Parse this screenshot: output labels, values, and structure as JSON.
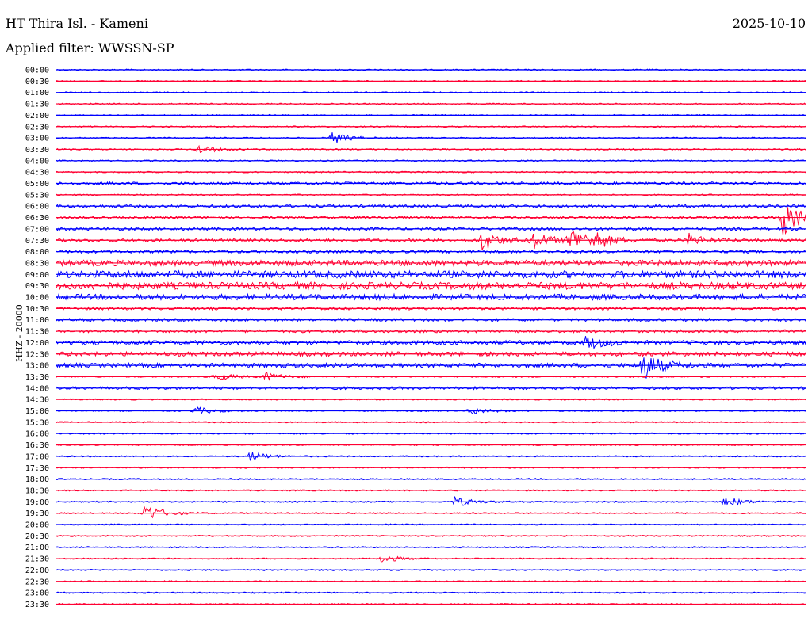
{
  "header": {
    "station": "HT Thira Isl. - Kameni",
    "date": "2025-10-10",
    "filter": "Applied filter: WWSSN-SP",
    "channel_label": "HHZ - 20000"
  },
  "colors": {
    "even_row": "#0000ff",
    "odd_row": "#ff0033",
    "text": "#000000"
  },
  "chart_data": {
    "type": "line",
    "title": "HT Thira Isl. - Kameni",
    "ylabel": "HHZ - 20000",
    "row_labels": [
      "00:00",
      "00:30",
      "01:00",
      "01:30",
      "02:00",
      "02:30",
      "03:00",
      "03:30",
      "04:00",
      "04:30",
      "05:00",
      "05:30",
      "06:00",
      "06:30",
      "07:00",
      "07:30",
      "08:00",
      "08:30",
      "09:00",
      "09:30",
      "10:00",
      "10:30",
      "11:00",
      "11:30",
      "12:00",
      "12:30",
      "13:00",
      "13:30",
      "14:00",
      "14:30",
      "15:00",
      "15:30",
      "16:00",
      "16:30",
      "17:00",
      "17:30",
      "18:00",
      "18:30",
      "19:00",
      "19:30",
      "20:00",
      "20:30",
      "21:00",
      "21:30",
      "22:00",
      "22:30",
      "23:00",
      "23:30"
    ],
    "row_noise_level": [
      1,
      1,
      1,
      1,
      1,
      1,
      1,
      1,
      1,
      1,
      2,
      1,
      2,
      2,
      2,
      2,
      2,
      4,
      5,
      5,
      4,
      2,
      2,
      2,
      3,
      3,
      3,
      1,
      2,
      1,
      1,
      1,
      1,
      1,
      1,
      1,
      1,
      1,
      1,
      1,
      1,
      1,
      1,
      1,
      1,
      1,
      1,
      1
    ],
    "events": [
      {
        "row": "03:00",
        "minute": 11.0,
        "amplitude": 8
      },
      {
        "row": "03:30",
        "minute": 5.6,
        "amplitude": 6
      },
      {
        "row": "06:30",
        "minute": 29.0,
        "amplitude": 30
      },
      {
        "row": "07:30",
        "minute": 17.0,
        "amplitude": 14
      },
      {
        "row": "07:30",
        "minute": 19.0,
        "amplitude": 12
      },
      {
        "row": "07:30",
        "minute": 20.5,
        "amplitude": 18
      },
      {
        "row": "07:30",
        "minute": 21.5,
        "amplitude": 10
      },
      {
        "row": "07:30",
        "minute": 25.3,
        "amplitude": 8
      },
      {
        "row": "12:00",
        "minute": 21.2,
        "amplitude": 8
      },
      {
        "row": "13:00",
        "minute": 23.4,
        "amplitude": 20
      },
      {
        "row": "13:30",
        "minute": 6.3,
        "amplitude": 6
      },
      {
        "row": "13:30",
        "minute": 8.3,
        "amplitude": 6
      },
      {
        "row": "15:00",
        "minute": 5.5,
        "amplitude": 5
      },
      {
        "row": "15:00",
        "minute": 16.5,
        "amplitude": 5
      },
      {
        "row": "17:00",
        "minute": 7.7,
        "amplitude": 6
      },
      {
        "row": "19:00",
        "minute": 15.9,
        "amplitude": 7
      },
      {
        "row": "19:00",
        "minute": 26.7,
        "amplitude": 7
      },
      {
        "row": "19:30",
        "minute": 3.5,
        "amplitude": 12
      },
      {
        "row": "21:30",
        "minute": 13.0,
        "amplitude": 5
      }
    ]
  }
}
